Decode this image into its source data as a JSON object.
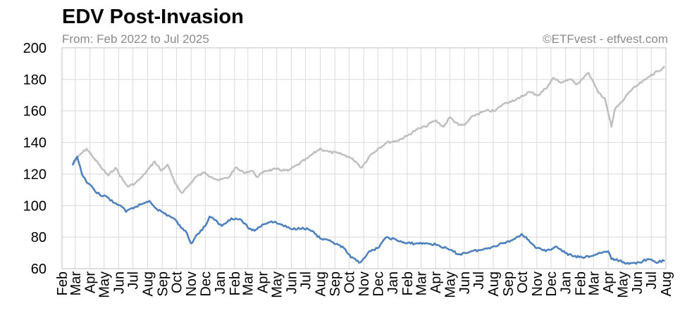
{
  "chart_data": {
    "type": "line",
    "title": "EDV Post-Invasion",
    "subtitle": "From: Feb 2022 to Jul 2025",
    "credit": "©ETFvest - etfvest.com",
    "ylim": [
      60,
      200
    ],
    "yticks": [
      60,
      80,
      100,
      120,
      140,
      160,
      180,
      200
    ],
    "x_range": [
      "2022-02",
      "2025-08"
    ],
    "x_tick_labels": [
      "Feb",
      "Mar",
      "Apr",
      "May",
      "Jun",
      "Jul",
      "Aug",
      "Sep",
      "Oct",
      "Nov",
      "Dec",
      "Jan",
      "Feb",
      "Mar",
      "Apr",
      "May",
      "Jun",
      "Jul",
      "Aug",
      "Sep",
      "Oct",
      "Nov",
      "Dec",
      "Jan",
      "Feb",
      "Mar",
      "Apr",
      "May",
      "Jun",
      "Jul",
      "Aug",
      "Sep",
      "Oct",
      "Nov",
      "Dec",
      "Jan",
      "Feb",
      "Mar",
      "Apr",
      "May",
      "Jun",
      "Jul",
      "Aug"
    ],
    "grid": true,
    "legend": "none",
    "series": [
      {
        "color": "#c0c0c0",
        "points": [
          [
            "2022-02-24",
            126
          ],
          [
            "2022-03-10",
            132
          ],
          [
            "2022-03-25",
            136
          ],
          [
            "2022-04-10",
            130
          ],
          [
            "2022-04-25",
            124
          ],
          [
            "2022-05-10",
            119
          ],
          [
            "2022-05-25",
            124
          ],
          [
            "2022-06-10",
            116
          ],
          [
            "2022-06-20",
            112
          ],
          [
            "2022-07-05",
            114
          ],
          [
            "2022-07-20",
            118
          ],
          [
            "2022-08-05",
            124
          ],
          [
            "2022-08-16",
            128
          ],
          [
            "2022-08-30",
            122
          ],
          [
            "2022-09-12",
            126
          ],
          [
            "2022-09-28",
            114
          ],
          [
            "2022-10-12",
            108
          ],
          [
            "2022-10-28",
            113
          ],
          [
            "2022-11-10",
            118
          ],
          [
            "2022-11-30",
            121
          ],
          [
            "2022-12-15",
            118
          ],
          [
            "2022-12-30",
            116
          ],
          [
            "2023-01-20",
            118
          ],
          [
            "2023-02-02",
            124
          ],
          [
            "2023-02-20",
            121
          ],
          [
            "2023-03-10",
            122
          ],
          [
            "2023-03-22",
            118
          ],
          [
            "2023-04-05",
            122
          ],
          [
            "2023-05-01",
            123
          ],
          [
            "2023-05-25",
            122
          ],
          [
            "2023-06-15",
            126
          ],
          [
            "2023-07-05",
            130
          ],
          [
            "2023-07-31",
            136
          ],
          [
            "2023-08-20",
            134
          ],
          [
            "2023-09-10",
            133
          ],
          [
            "2023-09-30",
            131
          ],
          [
            "2023-10-15",
            128
          ],
          [
            "2023-10-27",
            124
          ],
          [
            "2023-11-15",
            132
          ],
          [
            "2023-12-01",
            136
          ],
          [
            "2023-12-20",
            140
          ],
          [
            "2024-01-10",
            141
          ],
          [
            "2024-01-31",
            144
          ],
          [
            "2024-02-20",
            148
          ],
          [
            "2024-03-10",
            150
          ],
          [
            "2024-03-31",
            154
          ],
          [
            "2024-04-18",
            150
          ],
          [
            "2024-05-01",
            156
          ],
          [
            "2024-05-20",
            151
          ],
          [
            "2024-06-01",
            151
          ],
          [
            "2024-06-20",
            157
          ],
          [
            "2024-07-16",
            160
          ],
          [
            "2024-08-05",
            160
          ],
          [
            "2024-08-20",
            164
          ],
          [
            "2024-09-05",
            166
          ],
          [
            "2024-09-25",
            168
          ],
          [
            "2024-10-15",
            172
          ],
          [
            "2024-11-05",
            170
          ],
          [
            "2024-11-25",
            176
          ],
          [
            "2024-12-06",
            181
          ],
          [
            "2024-12-20",
            178
          ],
          [
            "2025-01-10",
            180
          ],
          [
            "2025-01-25",
            177
          ],
          [
            "2025-02-10",
            182
          ],
          [
            "2025-02-19",
            184
          ],
          [
            "2025-03-10",
            172
          ],
          [
            "2025-03-25",
            168
          ],
          [
            "2025-04-04",
            155
          ],
          [
            "2025-04-08",
            150
          ],
          [
            "2025-04-15",
            161
          ],
          [
            "2025-05-01",
            166
          ],
          [
            "2025-05-15",
            172
          ],
          [
            "2025-06-01",
            176
          ],
          [
            "2025-06-20",
            180
          ],
          [
            "2025-07-01",
            183
          ],
          [
            "2025-07-15",
            185
          ],
          [
            "2025-07-28",
            188
          ]
        ]
      },
      {
        "color": "#4f81bd",
        "points": [
          [
            "2022-02-24",
            126
          ],
          [
            "2022-03-05",
            131
          ],
          [
            "2022-03-15",
            120
          ],
          [
            "2022-03-28",
            114
          ],
          [
            "2022-04-10",
            110
          ],
          [
            "2022-04-25",
            106
          ],
          [
            "2022-05-05",
            106
          ],
          [
            "2022-05-20",
            102
          ],
          [
            "2022-06-05",
            100
          ],
          [
            "2022-06-16",
            96
          ],
          [
            "2022-07-05",
            99
          ],
          [
            "2022-07-20",
            101
          ],
          [
            "2022-08-05",
            103
          ],
          [
            "2022-08-20",
            98
          ],
          [
            "2022-09-05",
            95
          ],
          [
            "2022-09-25",
            92
          ],
          [
            "2022-10-05",
            88
          ],
          [
            "2022-10-20",
            84
          ],
          [
            "2022-11-01",
            76
          ],
          [
            "2022-11-15",
            82
          ],
          [
            "2022-12-01",
            87
          ],
          [
            "2022-12-10",
            93
          ],
          [
            "2022-12-20",
            91
          ],
          [
            "2023-01-05",
            87
          ],
          [
            "2023-01-25",
            92
          ],
          [
            "2023-02-15",
            91
          ],
          [
            "2023-03-01",
            86
          ],
          [
            "2023-03-15",
            84
          ],
          [
            "2023-04-01",
            88
          ],
          [
            "2023-04-20",
            90
          ],
          [
            "2023-05-10",
            88
          ],
          [
            "2023-06-01",
            85
          ],
          [
            "2023-06-25",
            86
          ],
          [
            "2023-07-15",
            84
          ],
          [
            "2023-08-01",
            79
          ],
          [
            "2023-08-25",
            77
          ],
          [
            "2023-09-20",
            73
          ],
          [
            "2023-10-05",
            67
          ],
          [
            "2023-10-25",
            64
          ],
          [
            "2023-11-10",
            70
          ],
          [
            "2023-11-30",
            73
          ],
          [
            "2023-12-20",
            80
          ],
          [
            "2024-01-10",
            78
          ],
          [
            "2024-01-30",
            76
          ],
          [
            "2024-02-20",
            76
          ],
          [
            "2024-03-15",
            76
          ],
          [
            "2024-04-05",
            75
          ],
          [
            "2024-04-30",
            72
          ],
          [
            "2024-05-20",
            69
          ],
          [
            "2024-06-15",
            71
          ],
          [
            "2024-07-10",
            72
          ],
          [
            "2024-07-31",
            74
          ],
          [
            "2024-08-20",
            76
          ],
          [
            "2024-09-10",
            78
          ],
          [
            "2024-09-30",
            82
          ],
          [
            "2024-10-15",
            78
          ],
          [
            "2024-11-01",
            73
          ],
          [
            "2024-11-20",
            71
          ],
          [
            "2024-12-10",
            74
          ],
          [
            "2024-12-31",
            70
          ],
          [
            "2025-01-15",
            68
          ],
          [
            "2025-02-05",
            67
          ],
          [
            "2025-02-25",
            68
          ],
          [
            "2025-03-15",
            70
          ],
          [
            "2025-04-01",
            71
          ],
          [
            "2025-04-08",
            66
          ],
          [
            "2025-04-25",
            65
          ],
          [
            "2025-05-15",
            63
          ],
          [
            "2025-06-05",
            64
          ],
          [
            "2025-06-25",
            66
          ],
          [
            "2025-07-10",
            64
          ],
          [
            "2025-07-28",
            65
          ]
        ]
      }
    ]
  }
}
